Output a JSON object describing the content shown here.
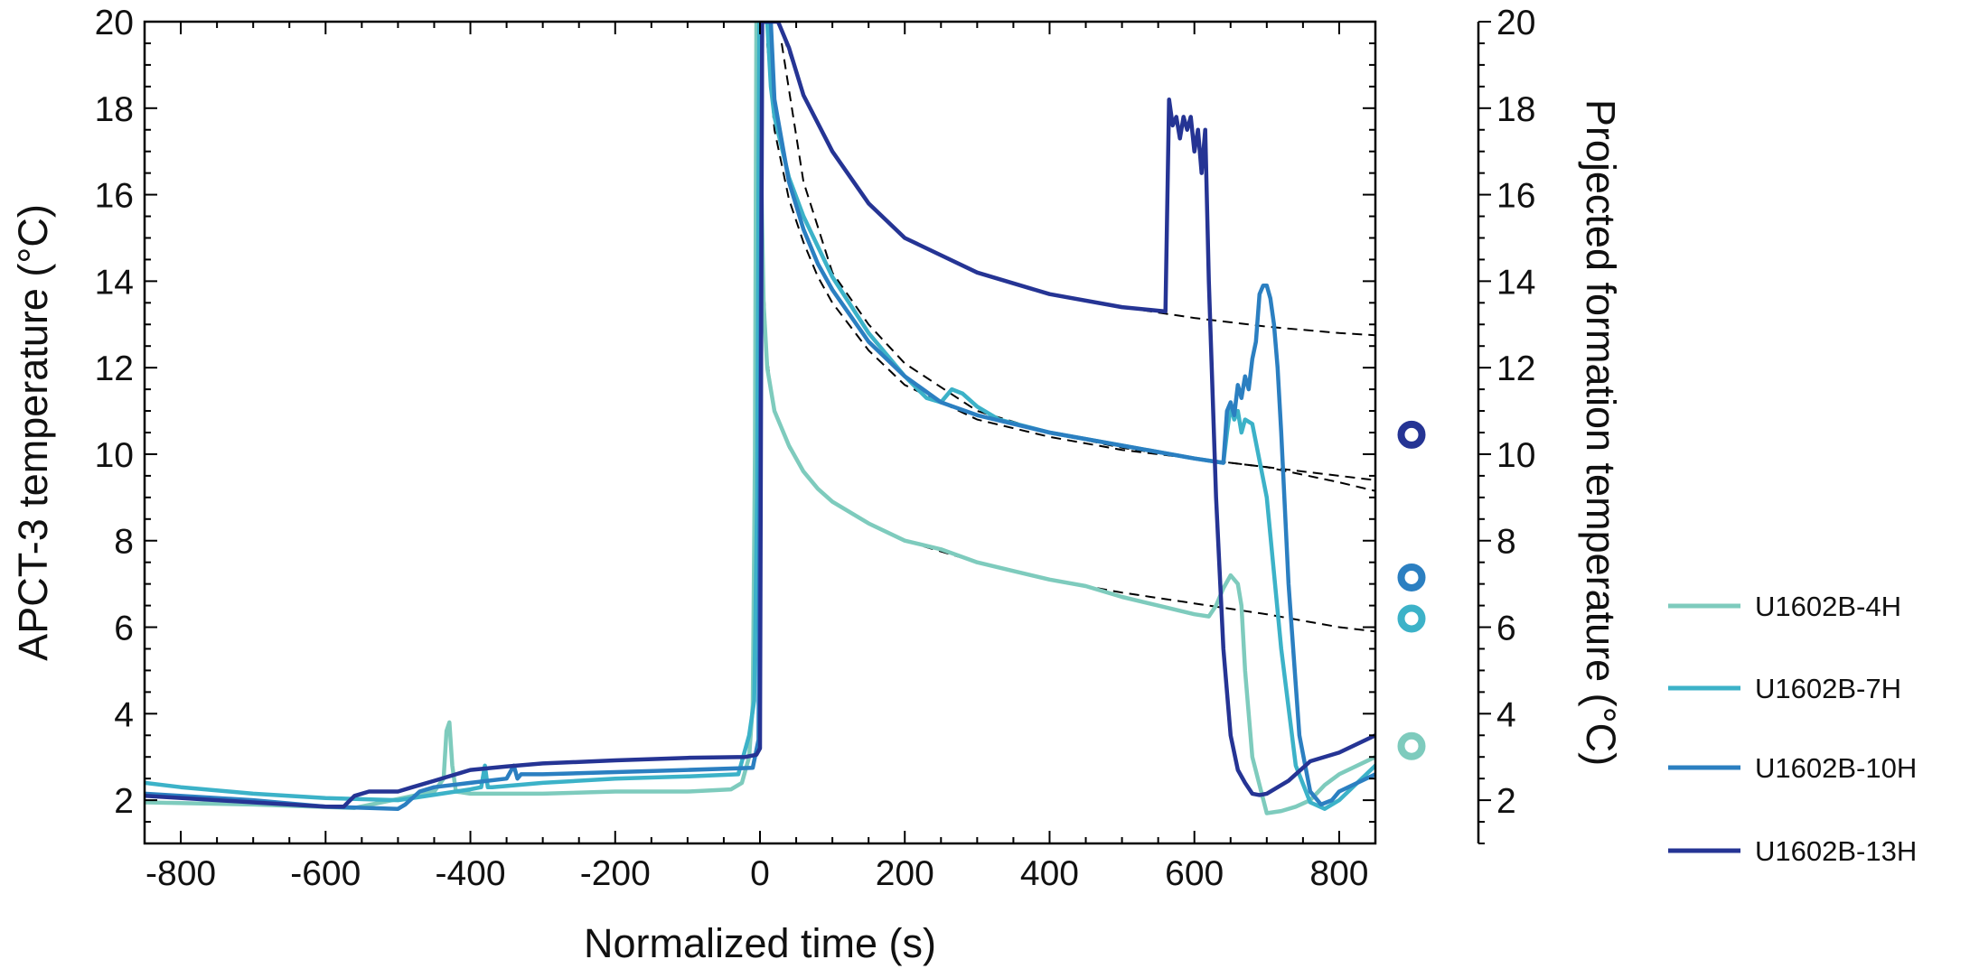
{
  "chart_data": {
    "type": "line",
    "xlabel": "Normalized time (s)",
    "ylabel": "APCT-3 temperature (°C)",
    "y2label": "Projected formation temperature (°C)",
    "xlim": [
      -850,
      850
    ],
    "ylim": [
      1,
      20
    ],
    "y2lim": [
      1,
      20
    ],
    "xticks": [
      -800,
      -600,
      -400,
      -200,
      0,
      200,
      400,
      600,
      800
    ],
    "yticks": [
      2,
      4,
      6,
      8,
      10,
      12,
      14,
      16,
      18,
      20
    ],
    "grid": false,
    "legend": "right",
    "series": [
      {
        "name": "U1602B-4H",
        "color": "#7ecbbd",
        "x": [
          -850,
          -700,
          -560,
          -450,
          -437,
          -433,
          -429,
          -425,
          -420,
          -400,
          -300,
          -200,
          -100,
          -40,
          -25,
          -15,
          -10,
          -7,
          -5,
          -3,
          0,
          5,
          10,
          20,
          40,
          60,
          80,
          100,
          150,
          200,
          250,
          300,
          350,
          400,
          450,
          500,
          550,
          600,
          620,
          630,
          640,
          650,
          660,
          665,
          670,
          680,
          700,
          720,
          740,
          760,
          780,
          800,
          850
        ],
        "y": [
          1.95,
          1.9,
          1.82,
          2.2,
          2.5,
          3.6,
          3.8,
          2.8,
          2.2,
          2.15,
          2.15,
          2.2,
          2.2,
          2.25,
          2.4,
          3.0,
          4.2,
          10,
          20,
          20,
          18,
          13.5,
          12,
          11,
          10.2,
          9.6,
          9.2,
          8.9,
          8.4,
          8.0,
          7.8,
          7.5,
          7.3,
          7.1,
          6.95,
          6.7,
          6.5,
          6.3,
          6.25,
          6.5,
          6.9,
          7.2,
          7.0,
          6.5,
          5.0,
          3.0,
          1.7,
          1.75,
          1.85,
          2.0,
          2.35,
          2.6,
          3.0
        ]
      },
      {
        "name": "U1602B-7H",
        "color": "#3cb2c8",
        "x": [
          -850,
          -800,
          -700,
          -600,
          -500,
          -420,
          -400,
          -385,
          -380,
          -376,
          -370,
          -300,
          -200,
          -100,
          -30,
          -15,
          -8,
          -4,
          -1,
          2,
          5,
          10,
          15,
          20,
          40,
          60,
          80,
          100,
          150,
          200,
          230,
          250,
          265,
          280,
          300,
          330,
          400,
          500,
          600,
          640,
          645,
          650,
          655,
          660,
          665,
          670,
          680,
          700,
          720,
          740,
          760,
          780,
          800,
          850
        ],
        "y": [
          2.4,
          2.3,
          2.15,
          2.05,
          2.0,
          2.2,
          2.25,
          2.3,
          2.8,
          2.3,
          2.3,
          2.4,
          2.5,
          2.55,
          2.6,
          3.5,
          4.3,
          9,
          20,
          20,
          20,
          20,
          18.5,
          17.8,
          16.4,
          15.5,
          14.8,
          14.1,
          12.8,
          11.8,
          11.3,
          11.2,
          11.5,
          11.4,
          11.1,
          10.8,
          10.5,
          10.2,
          9.9,
          9.8,
          10.5,
          11.1,
          10.8,
          11.0,
          10.5,
          10.8,
          10.7,
          9.0,
          5.5,
          2.8,
          1.95,
          1.8,
          2.0,
          2.8
        ]
      },
      {
        "name": "U1602B-10H",
        "color": "#2b7fc1",
        "x": [
          -850,
          -700,
          -600,
          -500,
          -490,
          -470,
          -450,
          -400,
          -350,
          -340,
          -335,
          -330,
          -300,
          -200,
          -100,
          -10,
          -2,
          3,
          10,
          15,
          20,
          40,
          60,
          80,
          100,
          150,
          200,
          250,
          300,
          400,
          500,
          600,
          640,
          645,
          650,
          655,
          660,
          665,
          670,
          675,
          680,
          685,
          690,
          695,
          700,
          705,
          710,
          715,
          720,
          730,
          745,
          760,
          775,
          790,
          800,
          850
        ],
        "y": [
          2.15,
          2.0,
          1.85,
          1.8,
          1.9,
          2.2,
          2.3,
          2.4,
          2.5,
          2.8,
          2.5,
          2.6,
          2.6,
          2.65,
          2.7,
          2.75,
          3.4,
          20,
          20,
          20,
          18.2,
          16.3,
          15.2,
          14.4,
          13.8,
          12.6,
          11.8,
          11.2,
          10.9,
          10.5,
          10.2,
          9.9,
          9.8,
          11.0,
          11.2,
          10.9,
          11.6,
          11.3,
          11.8,
          11.5,
          12.2,
          12.6,
          13.7,
          13.9,
          13.9,
          13.6,
          13.0,
          12.0,
          10.5,
          7.0,
          3.5,
          2.2,
          1.9,
          2.0,
          2.2,
          2.6
        ]
      },
      {
        "name": "U1602B-13H",
        "color": "#253494",
        "x": [
          -850,
          -700,
          -600,
          -575,
          -560,
          -540,
          -500,
          -480,
          -450,
          -400,
          -350,
          -300,
          -200,
          -100,
          -20,
          -5,
          0,
          3,
          8,
          15,
          25,
          40,
          60,
          100,
          150,
          200,
          300,
          400,
          500,
          560,
          565,
          570,
          575,
          580,
          585,
          590,
          595,
          600,
          605,
          610,
          615,
          620,
          630,
          640,
          650,
          660,
          670,
          680,
          690,
          700,
          730,
          760,
          800,
          850
        ],
        "y": [
          2.1,
          1.95,
          1.85,
          1.85,
          2.1,
          2.2,
          2.2,
          2.3,
          2.45,
          2.7,
          2.78,
          2.85,
          2.92,
          2.98,
          3.0,
          3.05,
          3.2,
          20,
          20,
          20,
          20,
          19.4,
          18.3,
          17.0,
          15.8,
          15.0,
          14.2,
          13.7,
          13.4,
          13.3,
          18.2,
          17.6,
          17.8,
          17.3,
          17.8,
          17.5,
          17.8,
          17.0,
          17.5,
          16.5,
          17.5,
          14.0,
          9.0,
          5.5,
          3.5,
          2.7,
          2.4,
          2.15,
          2.12,
          2.15,
          2.45,
          2.9,
          3.1,
          3.5
        ]
      }
    ],
    "fitted_curves": [
      {
        "color": "#000000",
        "x": [
          5,
          10,
          20,
          40,
          60,
          80,
          100,
          150,
          200,
          300,
          400,
          500,
          600,
          700,
          800,
          850
        ],
        "y": [
          14.0,
          12.2,
          11.0,
          10.15,
          9.6,
          9.2,
          8.9,
          8.4,
          8.0,
          7.5,
          7.1,
          6.8,
          6.55,
          6.3,
          6.0,
          5.9
        ]
      },
      {
        "color": "#000000",
        "x": [
          10,
          20,
          40,
          60,
          80,
          100,
          150,
          200,
          300,
          400,
          500,
          600,
          700,
          800,
          850
        ],
        "y": [
          19.5,
          17.5,
          15.9,
          14.9,
          14.1,
          13.5,
          12.4,
          11.6,
          10.8,
          10.4,
          10.1,
          9.9,
          9.7,
          9.35,
          9.15
        ]
      },
      {
        "color": "#000000",
        "x": [
          30,
          60,
          100,
          150,
          200,
          300,
          400,
          500,
          600,
          700,
          800,
          850
        ],
        "y": [
          19.5,
          16.3,
          14.2,
          13.0,
          12.1,
          11.0,
          10.5,
          10.15,
          9.9,
          9.7,
          9.5,
          9.4
        ]
      },
      {
        "color": "#000000",
        "x": [
          25,
          40,
          60,
          100,
          150,
          200,
          300,
          400,
          500,
          600,
          700,
          800,
          850
        ],
        "y": [
          20,
          19.3,
          18.3,
          17.0,
          15.8,
          15.0,
          14.2,
          13.7,
          13.4,
          13.15,
          12.95,
          12.8,
          12.75
        ]
      }
    ],
    "projected_formation_temperatures": [
      {
        "name": "U1602B-13H",
        "color": "#253494",
        "value": 10.45
      },
      {
        "name": "U1602B-10H",
        "color": "#2b7fc1",
        "value": 7.15
      },
      {
        "name": "U1602B-7H",
        "color": "#3cb2c8",
        "value": 6.2
      },
      {
        "name": "U1602B-4H",
        "color": "#7ecbbd",
        "value": 3.25
      }
    ]
  }
}
